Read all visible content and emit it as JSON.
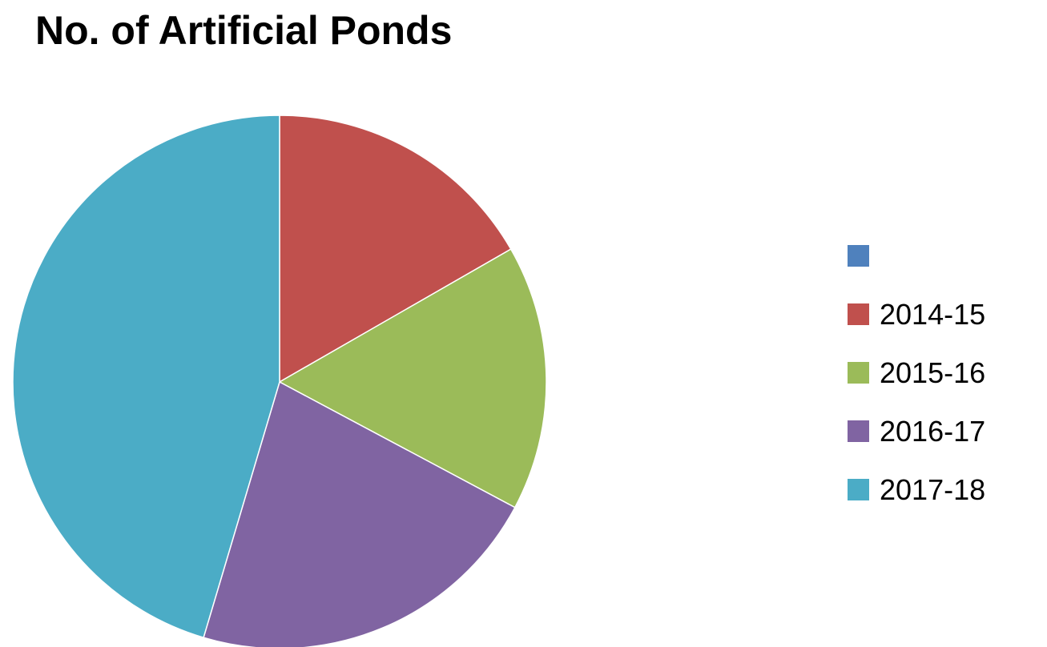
{
  "chart_data": {
    "type": "pie",
    "title": "No. of Artificial Ponds",
    "legend_position": "right",
    "slices": [
      {
        "label": "",
        "value": 0,
        "color": "#4F81BD"
      },
      {
        "label": "2014-15",
        "value": 16.7,
        "color": "#C0504D"
      },
      {
        "label": "2015-16",
        "value": 16.1,
        "color": "#9BBB59"
      },
      {
        "label": "2016-17",
        "value": 21.8,
        "color": "#8064A2"
      },
      {
        "label": "2017-18",
        "value": 45.4,
        "color": "#4BACC6"
      }
    ]
  }
}
